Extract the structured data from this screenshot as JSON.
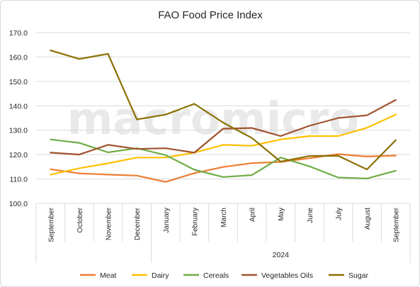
{
  "chart_data": {
    "type": "line",
    "title": "FAO Food Price Index",
    "watermark": "macromicro",
    "categories": [
      "September",
      "October",
      "November",
      "December",
      "January",
      "February",
      "March",
      "April",
      "May",
      "June",
      "July",
      "August",
      "September"
    ],
    "year_label": "2024",
    "ylim": [
      100,
      170
    ],
    "yticks": [
      "100.0",
      "110.0",
      "120.0",
      "130.0",
      "140.0",
      "150.0",
      "160.0",
      "170.0"
    ],
    "grid": true,
    "legend_position": "bottom",
    "series": [
      {
        "name": "Meat",
        "color": "#ED7D31",
        "values": [
          114.0,
          112.3,
          111.8,
          111.4,
          108.8,
          112.4,
          114.9,
          116.5,
          117.0,
          118.5,
          120.2,
          119.2,
          119.6
        ]
      },
      {
        "name": "Dairy",
        "color": "#FFC000",
        "values": [
          111.8,
          114.4,
          116.4,
          118.8,
          118.8,
          120.8,
          124.0,
          123.6,
          126.2,
          127.6,
          127.6,
          131.0,
          136.4
        ]
      },
      {
        "name": "Cereals",
        "color": "#70AD47",
        "values": [
          126.2,
          124.8,
          120.9,
          122.6,
          119.8,
          113.8,
          110.8,
          111.6,
          118.8,
          115.2,
          110.6,
          110.2,
          113.4
        ]
      },
      {
        "name": "Vegetables Oils",
        "color": "#A0522D",
        "values": [
          120.8,
          120.0,
          124.0,
          122.3,
          122.6,
          120.8,
          130.6,
          130.9,
          127.6,
          131.8,
          135.0,
          136.1,
          142.4
        ]
      },
      {
        "name": "Sugar",
        "color": "#8B7000",
        "values": [
          162.7,
          159.2,
          161.3,
          134.4,
          136.4,
          140.8,
          133.1,
          126.8,
          117.1,
          119.4,
          119.5,
          113.9,
          125.9
        ]
      }
    ]
  }
}
